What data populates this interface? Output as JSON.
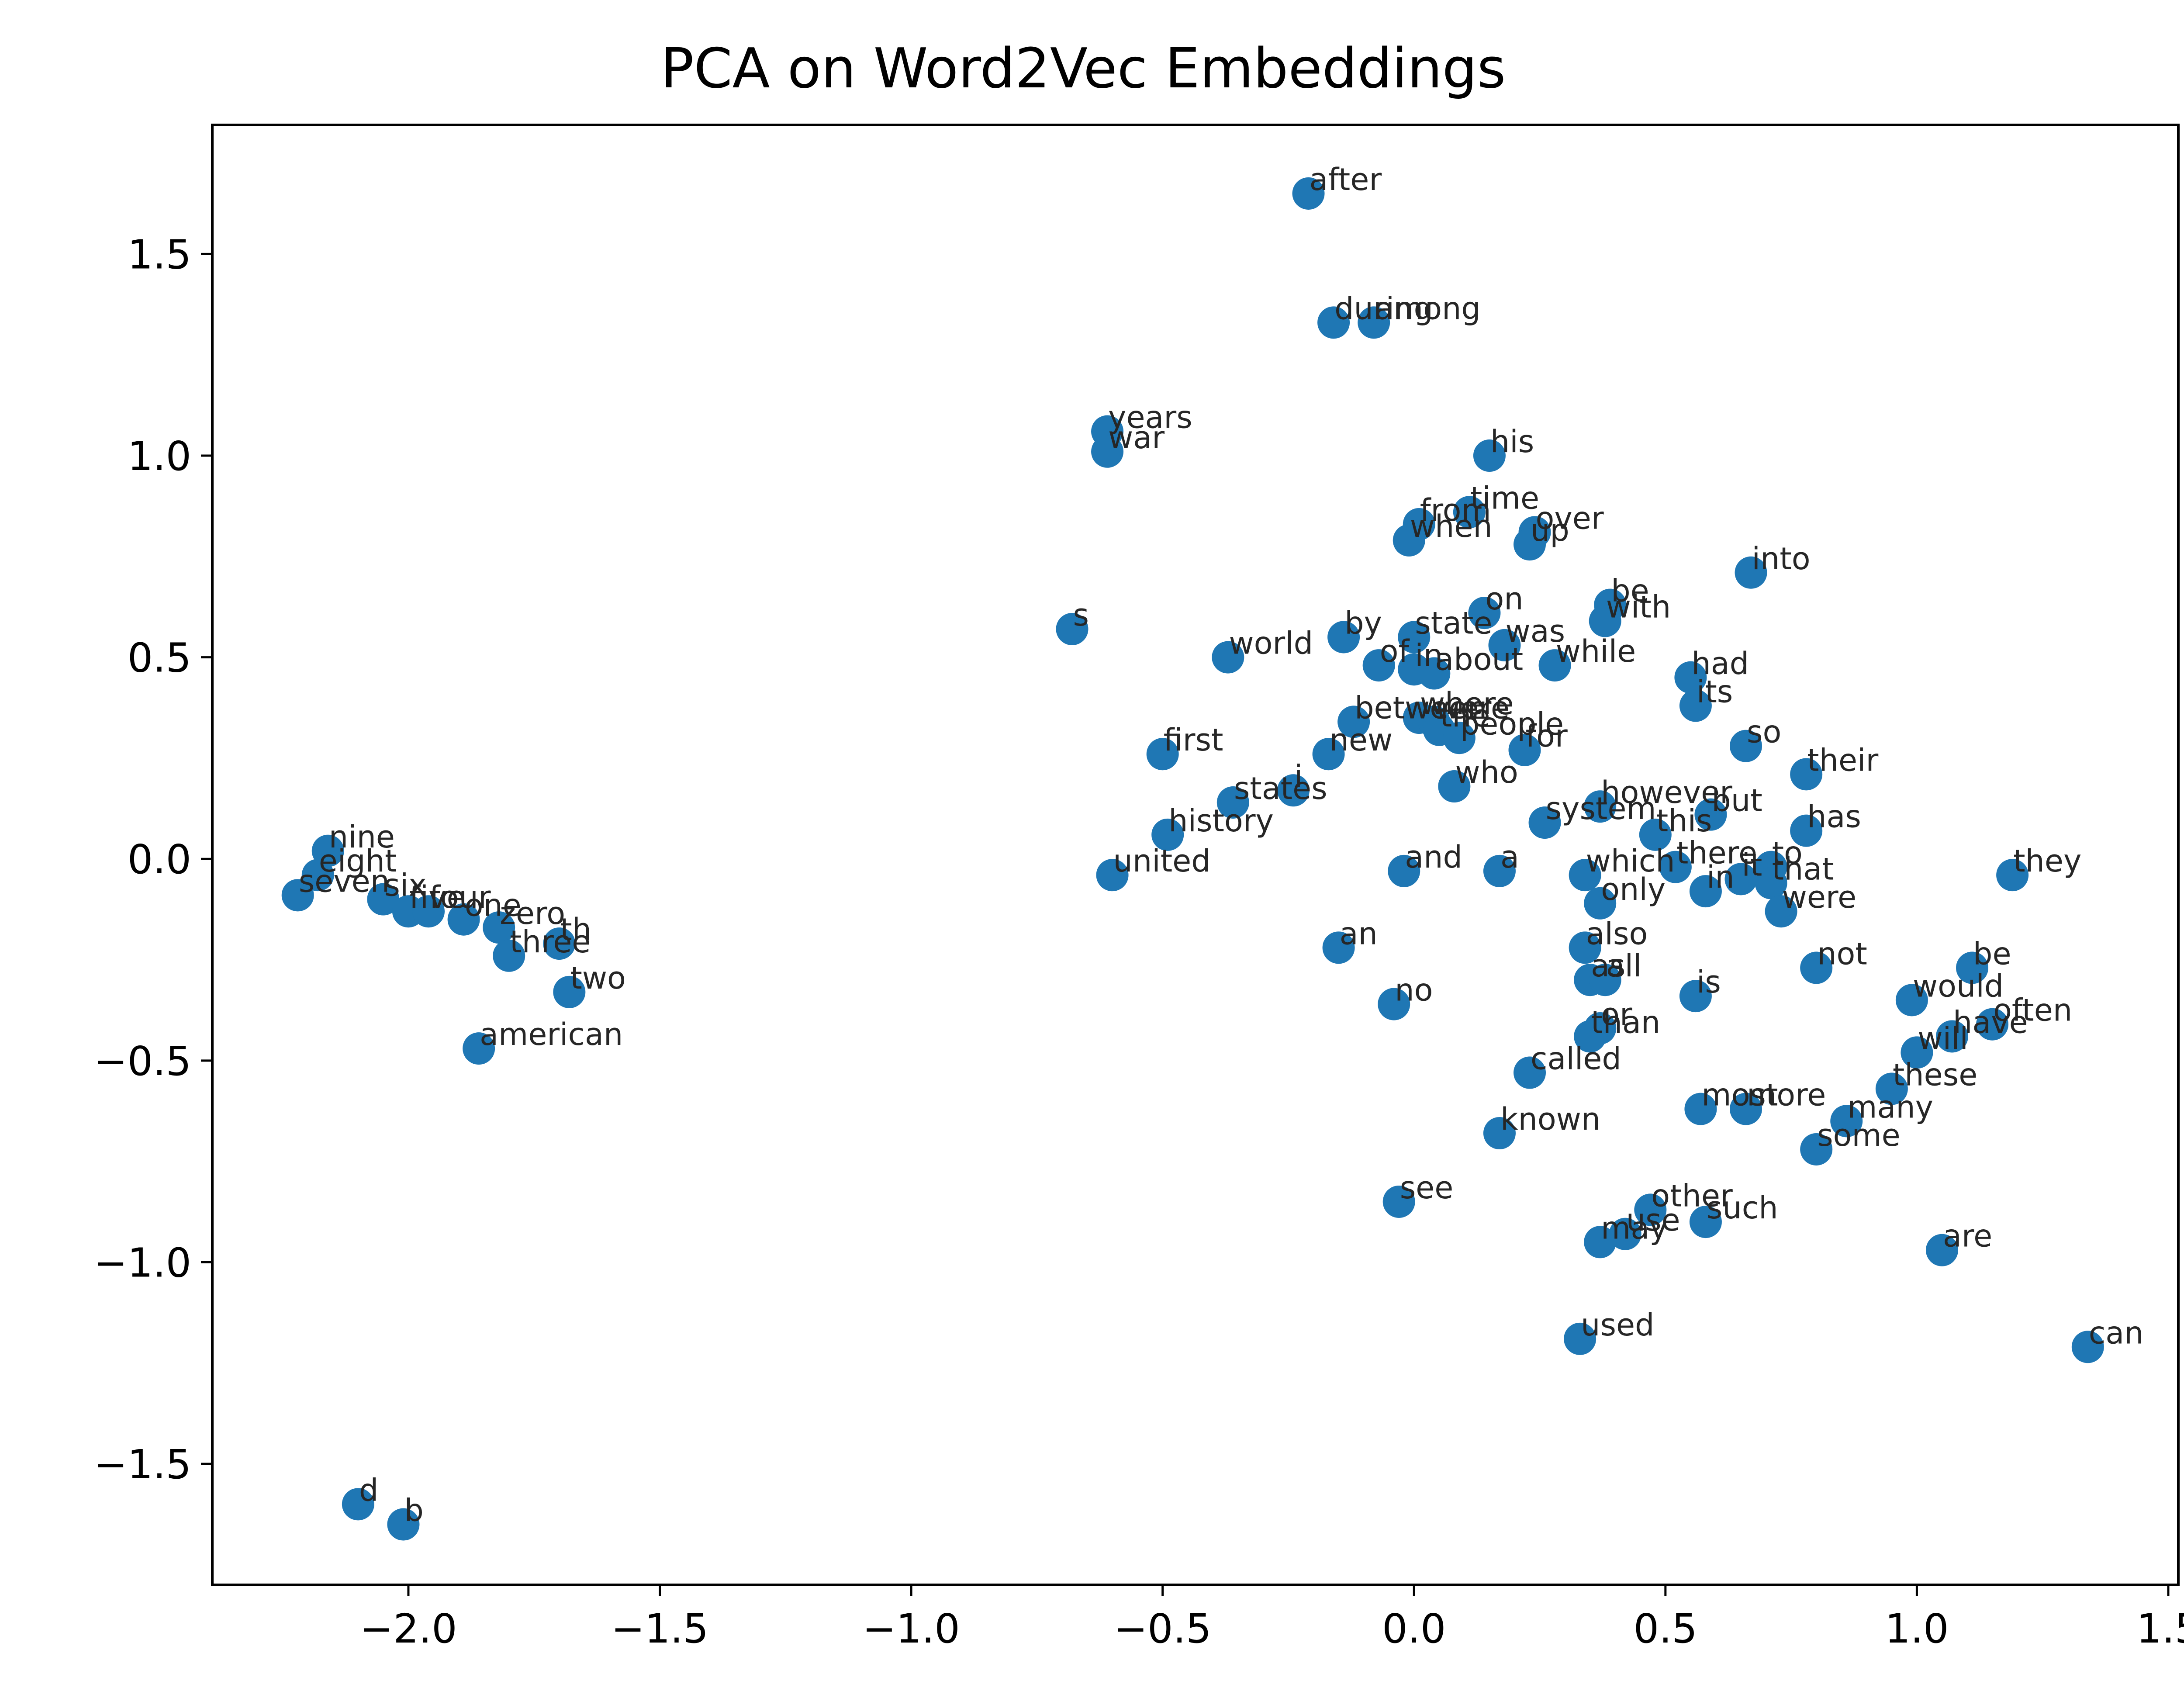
{
  "chart_data": {
    "type": "scatter",
    "title": "PCA on Word2Vec Embeddings",
    "xlabel": "",
    "ylabel": "",
    "xlim": [
      -2.39,
      1.52
    ],
    "ylim": [
      -1.8,
      1.82
    ],
    "xticks": [
      -2.0,
      -1.5,
      -1.0,
      -0.5,
      0.0,
      0.5,
      1.0,
      1.5
    ],
    "xtick_labels": [
      "−2.0",
      "−1.5",
      "−1.0",
      "−0.5",
      "0.0",
      "0.5",
      "1.0",
      "1.5"
    ],
    "yticks": [
      -1.5,
      -1.0,
      -0.5,
      0.0,
      0.5,
      1.0,
      1.5
    ],
    "ytick_labels": [
      "−1.5",
      "−1.0",
      "−0.5",
      "0.0",
      "0.5",
      "1.0",
      "1.5"
    ],
    "grid": false,
    "marker_color": "#1f77b4",
    "points": [
      {
        "label": "after",
        "x": -0.21,
        "y": 1.65
      },
      {
        "label": "during",
        "x": -0.16,
        "y": 1.33
      },
      {
        "label": "among",
        "x": -0.08,
        "y": 1.33
      },
      {
        "label": "years",
        "x": -0.61,
        "y": 1.06
      },
      {
        "label": "war",
        "x": -0.61,
        "y": 1.01
      },
      {
        "label": "his",
        "x": 0.15,
        "y": 1.0
      },
      {
        "label": "time",
        "x": 0.11,
        "y": 0.86
      },
      {
        "label": "from",
        "x": 0.01,
        "y": 0.83
      },
      {
        "label": "over",
        "x": 0.24,
        "y": 0.81
      },
      {
        "label": "when",
        "x": -0.01,
        "y": 0.79
      },
      {
        "label": "up",
        "x": 0.23,
        "y": 0.78
      },
      {
        "label": "into",
        "x": 0.67,
        "y": 0.71
      },
      {
        "label": "be",
        "x": 0.39,
        "y": 0.63
      },
      {
        "label": "on",
        "x": 0.14,
        "y": 0.61
      },
      {
        "label": "with",
        "x": 0.38,
        "y": 0.59
      },
      {
        "label": "s",
        "x": -0.68,
        "y": 0.57
      },
      {
        "label": "by",
        "x": -0.14,
        "y": 0.55
      },
      {
        "label": "state",
        "x": 0.0,
        "y": 0.55
      },
      {
        "label": "was",
        "x": 0.18,
        "y": 0.53
      },
      {
        "label": "world",
        "x": -0.37,
        "y": 0.5
      },
      {
        "label": "of",
        "x": -0.07,
        "y": 0.48
      },
      {
        "label": "in",
        "x": 0.0,
        "y": 0.47
      },
      {
        "label": "about",
        "x": 0.04,
        "y": 0.46
      },
      {
        "label": "while",
        "x": 0.28,
        "y": 0.48
      },
      {
        "label": "had",
        "x": 0.55,
        "y": 0.45
      },
      {
        "label": "its",
        "x": 0.56,
        "y": 0.38
      },
      {
        "label": "between",
        "x": -0.12,
        "y": 0.34
      },
      {
        "label": "where",
        "x": 0.01,
        "y": 0.35
      },
      {
        "label": "were",
        "x": 0.04,
        "y": 0.34
      },
      {
        "label": "the",
        "x": 0.05,
        "y": 0.32
      },
      {
        "label": "people",
        "x": 0.09,
        "y": 0.3
      },
      {
        "label": "for",
        "x": 0.22,
        "y": 0.27
      },
      {
        "label": "so",
        "x": 0.66,
        "y": 0.28
      },
      {
        "label": "first",
        "x": -0.5,
        "y": 0.26
      },
      {
        "label": "new",
        "x": -0.17,
        "y": 0.26
      },
      {
        "label": "their",
        "x": 0.78,
        "y": 0.21
      },
      {
        "label": "who",
        "x": 0.08,
        "y": 0.18
      },
      {
        "label": "i",
        "x": -0.24,
        "y": 0.17
      },
      {
        "label": "states",
        "x": -0.36,
        "y": 0.14
      },
      {
        "label": "however",
        "x": 0.37,
        "y": 0.13
      },
      {
        "label": "but",
        "x": 0.59,
        "y": 0.11
      },
      {
        "label": "system",
        "x": 0.26,
        "y": 0.09
      },
      {
        "label": "has",
        "x": 0.78,
        "y": 0.07
      },
      {
        "label": "this",
        "x": 0.48,
        "y": 0.06
      },
      {
        "label": "history",
        "x": -0.49,
        "y": 0.06
      },
      {
        "label": "nine",
        "x": -2.16,
        "y": 0.02
      },
      {
        "label": "there",
        "x": 0.52,
        "y": -0.02
      },
      {
        "label": "to",
        "x": 0.71,
        "y": -0.02
      },
      {
        "label": "and",
        "x": -0.02,
        "y": -0.03
      },
      {
        "label": "a",
        "x": 0.17,
        "y": -0.03
      },
      {
        "label": "eight",
        "x": -2.18,
        "y": -0.04
      },
      {
        "label": "which",
        "x": 0.34,
        "y": -0.04
      },
      {
        "label": "united",
        "x": -0.6,
        "y": -0.04
      },
      {
        "label": "they",
        "x": 1.19,
        "y": -0.04
      },
      {
        "label": "it",
        "x": 0.65,
        "y": -0.05
      },
      {
        "label": "that",
        "x": 0.71,
        "y": -0.06
      },
      {
        "label": "in",
        "x": 0.58,
        "y": -0.08
      },
      {
        "label": "seven",
        "x": -2.22,
        "y": -0.09
      },
      {
        "label": "six",
        "x": -2.05,
        "y": -0.1
      },
      {
        "label": "only",
        "x": 0.37,
        "y": -0.11
      },
      {
        "label": "five",
        "x": -2.0,
        "y": -0.13
      },
      {
        "label": "four",
        "x": -1.96,
        "y": -0.13
      },
      {
        "label": "were",
        "x": 0.73,
        "y": -0.13
      },
      {
        "label": "one",
        "x": -1.89,
        "y": -0.15
      },
      {
        "label": "zero",
        "x": -1.82,
        "y": -0.17
      },
      {
        "label": "th",
        "x": -1.7,
        "y": -0.21
      },
      {
        "label": "also",
        "x": 0.34,
        "y": -0.22
      },
      {
        "label": "an",
        "x": -0.15,
        "y": -0.22
      },
      {
        "label": "three",
        "x": -1.8,
        "y": -0.24
      },
      {
        "label": "not",
        "x": 0.8,
        "y": -0.27
      },
      {
        "label": "be",
        "x": 1.11,
        "y": -0.27
      },
      {
        "label": "as",
        "x": 0.35,
        "y": -0.3
      },
      {
        "label": "all",
        "x": 0.38,
        "y": -0.3
      },
      {
        "label": "two",
        "x": -1.68,
        "y": -0.33
      },
      {
        "label": "is",
        "x": 0.56,
        "y": -0.34
      },
      {
        "label": "would",
        "x": 0.99,
        "y": -0.35
      },
      {
        "label": "no",
        "x": -0.04,
        "y": -0.36
      },
      {
        "label": "often",
        "x": 1.15,
        "y": -0.41
      },
      {
        "label": "or",
        "x": 0.37,
        "y": -0.42
      },
      {
        "label": "than",
        "x": 0.35,
        "y": -0.44
      },
      {
        "label": "have",
        "x": 1.07,
        "y": -0.44
      },
      {
        "label": "american",
        "x": -1.86,
        "y": -0.47
      },
      {
        "label": "will",
        "x": 1.0,
        "y": -0.48
      },
      {
        "label": "called",
        "x": 0.23,
        "y": -0.53
      },
      {
        "label": "these",
        "x": 0.95,
        "y": -0.57
      },
      {
        "label": "most",
        "x": 0.57,
        "y": -0.62
      },
      {
        "label": "more",
        "x": 0.66,
        "y": -0.62
      },
      {
        "label": "many",
        "x": 0.86,
        "y": -0.65
      },
      {
        "label": "known",
        "x": 0.17,
        "y": -0.68
      },
      {
        "label": "some",
        "x": 0.8,
        "y": -0.72
      },
      {
        "label": "see",
        "x": -0.03,
        "y": -0.85
      },
      {
        "label": "other",
        "x": 0.47,
        "y": -0.87
      },
      {
        "label": "such",
        "x": 0.58,
        "y": -0.9
      },
      {
        "label": "use",
        "x": 0.42,
        "y": -0.93
      },
      {
        "label": "may",
        "x": 0.37,
        "y": -0.95
      },
      {
        "label": "are",
        "x": 1.05,
        "y": -0.97
      },
      {
        "label": "used",
        "x": 0.33,
        "y": -1.19
      },
      {
        "label": "can",
        "x": 1.34,
        "y": -1.21
      },
      {
        "label": "d",
        "x": -2.1,
        "y": -1.6
      },
      {
        "label": "b",
        "x": -2.01,
        "y": -1.65
      }
    ]
  }
}
